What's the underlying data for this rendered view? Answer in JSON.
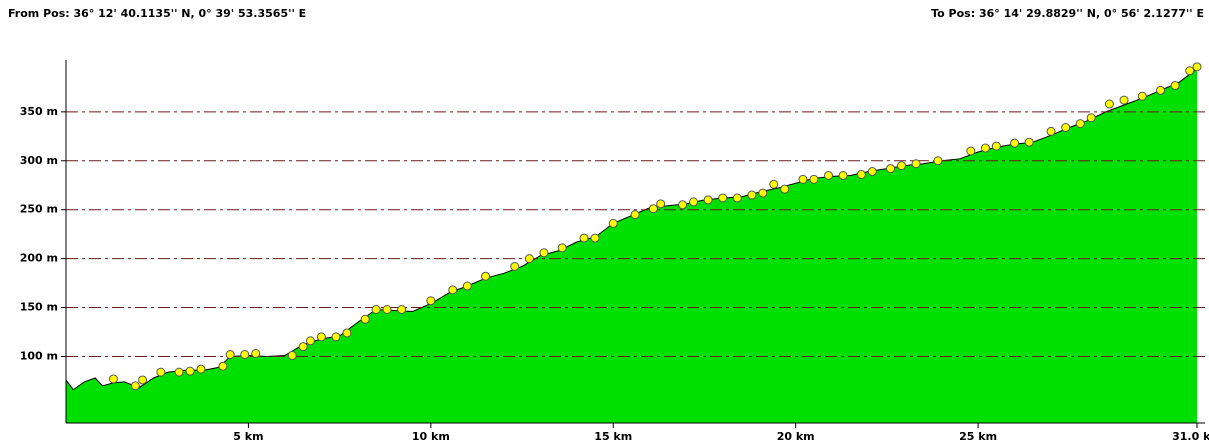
{
  "chart_data": {
    "type": "area",
    "from_label": "From Pos: 36° 12' 40.1135'' N, 0° 39' 53.3565'' E",
    "to_label": "To Pos: 36° 14' 29.8829'' N, 0° 56' 2.1277'' E",
    "xlim": [
      0,
      31.0
    ],
    "ylim": [
      32,
      403
    ],
    "xticks": [
      {
        "value": 5,
        "label": "5 km"
      },
      {
        "value": 10,
        "label": "10 km"
      },
      {
        "value": 15,
        "label": "15 km"
      },
      {
        "value": 20,
        "label": "20 km"
      },
      {
        "value": 25,
        "label": "25 km"
      },
      {
        "value": 31.0,
        "label": "31.0 km"
      }
    ],
    "yticks": [
      {
        "value": 100,
        "label": "100 m"
      },
      {
        "value": 150,
        "label": "150 m"
      },
      {
        "value": 200,
        "label": "200 m"
      },
      {
        "value": 250,
        "label": "250 m"
      },
      {
        "value": 300,
        "label": "300 m"
      },
      {
        "value": 350,
        "label": "350 m"
      }
    ],
    "grid": true,
    "profile": {
      "color": "#00e000",
      "x": [
        0,
        0.2,
        0.5,
        0.8,
        1.0,
        1.3,
        1.6,
        2.0,
        2.4,
        2.8,
        3.3,
        3.8,
        4.2,
        4.5,
        5.0,
        5.5,
        6.0,
        6.5,
        7.0,
        7.5,
        8.0,
        8.5,
        9.0,
        9.5,
        10.0,
        10.5,
        11.0,
        11.5,
        12.0,
        12.5,
        13.0,
        13.5,
        14.0,
        14.5,
        15.0,
        15.5,
        16.0,
        16.5,
        17.0,
        17.5,
        18.0,
        18.5,
        19.0,
        19.5,
        20.0,
        20.5,
        21.0,
        21.5,
        22.0,
        22.5,
        23.0,
        23.5,
        24.0,
        24.5,
        25.0,
        25.5,
        26.0,
        26.5,
        27.0,
        27.5,
        28.0,
        28.5,
        29.0,
        29.5,
        30.0,
        30.5,
        31.0
      ],
      "values": [
        76,
        66,
        74,
        78,
        70,
        73,
        74,
        68,
        78,
        84,
        86,
        86,
        89,
        100,
        101,
        100,
        101,
        112,
        118,
        121,
        135,
        148,
        147,
        146,
        154,
        165,
        172,
        180,
        185,
        192,
        203,
        208,
        217,
        222,
        236,
        244,
        252,
        254,
        256,
        260,
        262,
        263,
        268,
        272,
        277,
        282,
        284,
        285,
        289,
        292,
        295,
        297,
        300,
        302,
        309,
        314,
        317,
        319,
        326,
        334,
        341,
        350,
        357,
        364,
        372,
        380,
        394
      ]
    },
    "waypoints": {
      "color": "#ffff00",
      "x": [
        1.3,
        1.9,
        2.1,
        2.6,
        3.1,
        3.4,
        3.7,
        4.3,
        4.5,
        4.9,
        5.2,
        6.2,
        6.5,
        6.7,
        7.0,
        7.4,
        7.7,
        8.2,
        8.5,
        8.8,
        9.2,
        10.0,
        10.6,
        11.0,
        11.5,
        12.3,
        12.7,
        13.1,
        13.6,
        14.2,
        14.5,
        15.0,
        15.6,
        16.1,
        16.3,
        16.9,
        17.2,
        17.6,
        18.0,
        18.4,
        18.8,
        19.1,
        19.4,
        19.7,
        20.2,
        20.5,
        20.9,
        21.3,
        21.8,
        22.1,
        22.6,
        22.9,
        23.3,
        23.9,
        24.8,
        25.2,
        25.5,
        26.0,
        26.4,
        27.0,
        27.4,
        27.8,
        28.1,
        28.6,
        29.0,
        29.5,
        30.0,
        30.4,
        30.8,
        31.0
      ],
      "values": [
        77,
        70,
        76,
        84,
        84,
        85,
        87,
        90,
        102,
        102,
        103,
        101,
        110,
        116,
        120,
        120,
        124,
        138,
        148,
        148,
        148,
        157,
        168,
        172,
        182,
        192,
        200,
        206,
        211,
        221,
        221,
        236,
        245,
        251,
        256,
        255,
        258,
        260,
        262,
        262,
        265,
        267,
        276,
        271,
        281,
        281,
        285,
        285,
        286,
        289,
        292,
        295,
        297,
        300,
        310,
        313,
        315,
        318,
        319,
        330,
        334,
        338,
        344,
        358,
        362,
        366,
        372,
        377,
        392,
        396
      ]
    }
  }
}
